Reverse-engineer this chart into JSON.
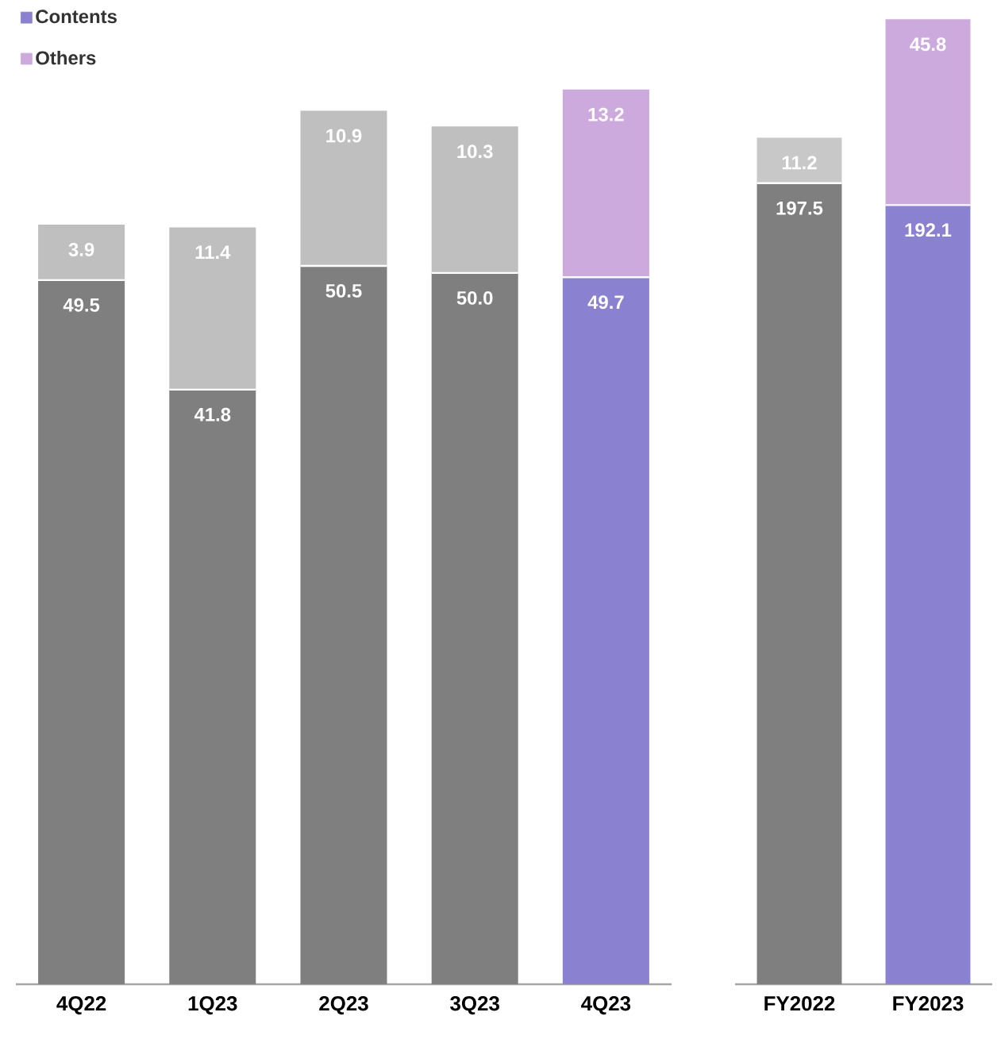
{
  "chart_data": [
    {
      "type": "bar",
      "stacked": true,
      "data_labels": true,
      "legend": "top left",
      "categories": [
        "4Q22",
        "1Q23",
        "2Q23",
        "3Q23",
        "4Q23"
      ],
      "series": [
        {
          "name": "Contents",
          "color": "#8a81d0",
          "colors": [
            "#7f7f7f",
            "#7f7f7f",
            "#7f7f7f",
            "#7f7f7f",
            "#8a81d0"
          ],
          "values": [
            49.5,
            41.8,
            50.5,
            50.0,
            49.7
          ],
          "value_labels": [
            "49.5",
            "41.8",
            "50.5",
            "50.0",
            "49.7"
          ]
        },
        {
          "name": "Others",
          "color": "#cdaade",
          "colors": [
            "#bfbfbf",
            "#bfbfbf",
            "#bfbfbf",
            "#bfbfbf",
            "#cdaade"
          ],
          "values": [
            3.9,
            11.4,
            10.9,
            10.3,
            13.2
          ]
        }
      ]
    },
    {
      "type": "bar",
      "stacked": true,
      "data_labels": true,
      "categories": [
        "FY2022",
        "FY2023"
      ],
      "series": [
        {
          "colors": [
            "#7f7f7f",
            "#8a81d0"
          ],
          "values": [
            197.5,
            192.1
          ]
        },
        {
          "colors": [
            "#c8c8c8",
            "#cdaade"
          ],
          "values": [
            11.2,
            45.8
          ]
        }
      ]
    }
  ]
}
